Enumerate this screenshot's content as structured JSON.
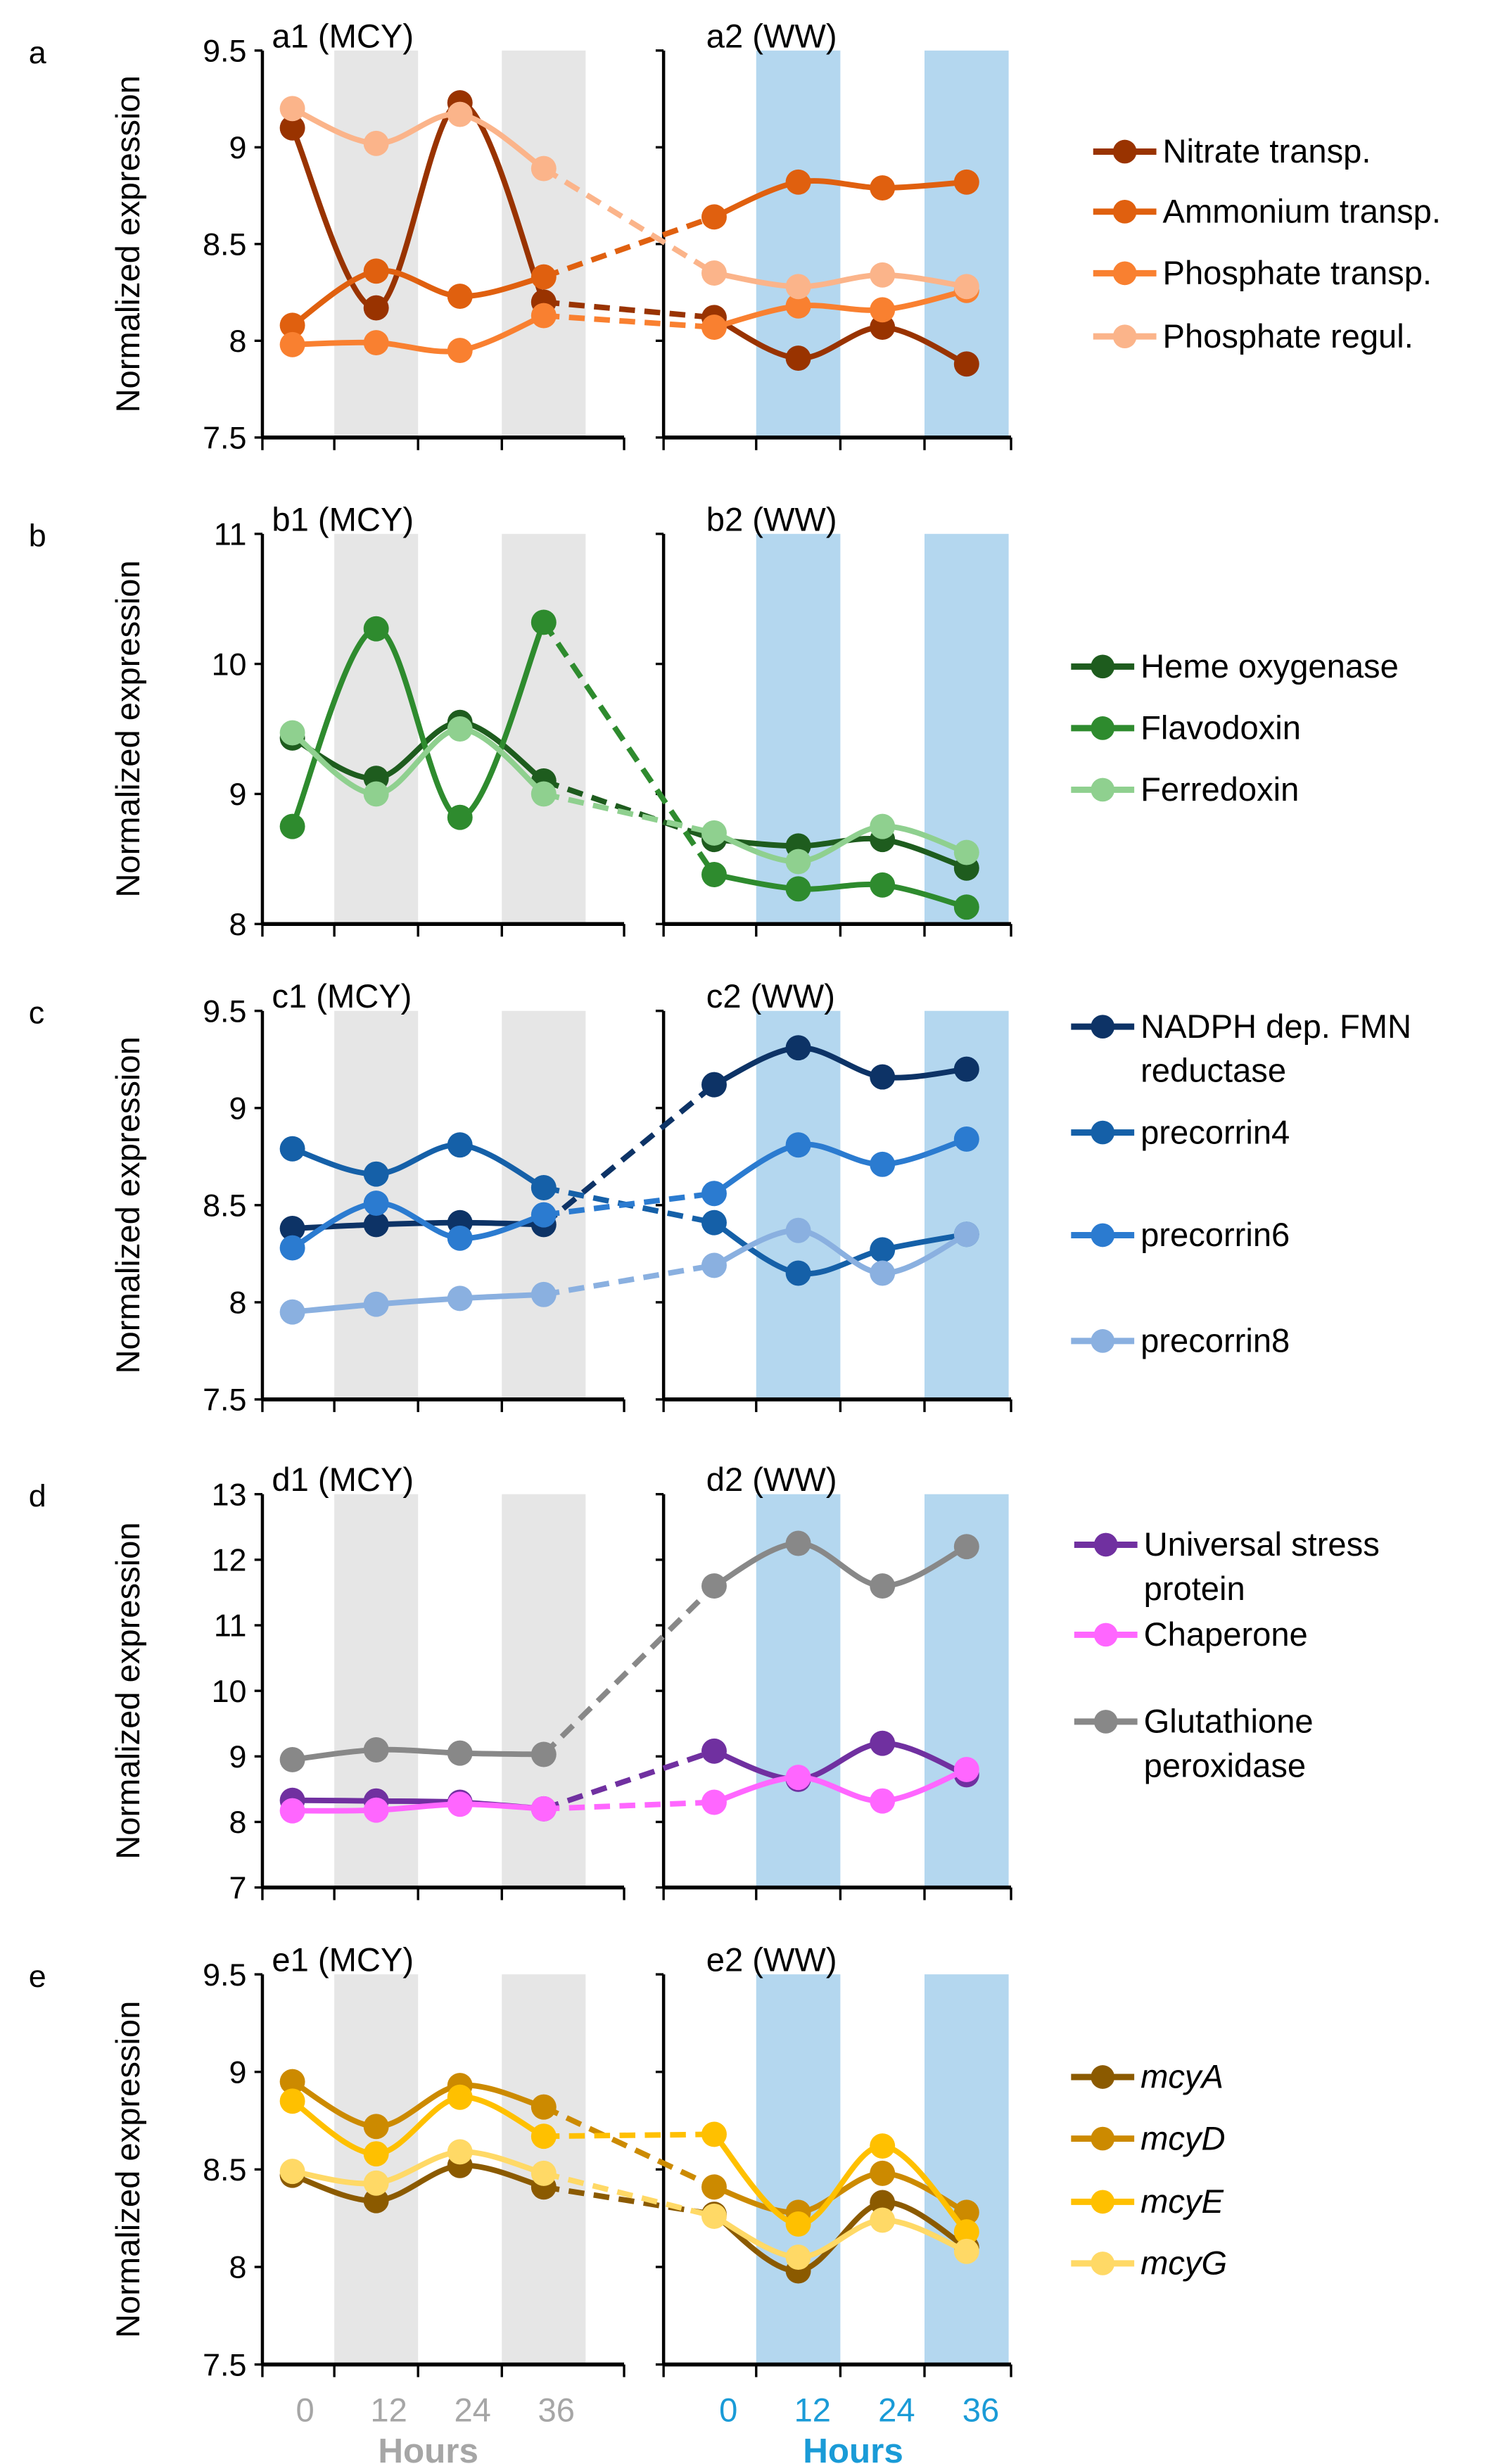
{
  "x_axis": {
    "ticks": [
      "0",
      "12",
      "24",
      "36"
    ],
    "left_label": "Hours",
    "right_label": "Hours",
    "left_color": "#A6A6A6",
    "right_color": "#1A9BD7"
  },
  "band_colors": {
    "MCY": "#E6E6E6",
    "WW": "#B4D7EF"
  },
  "chart_data": [
    {
      "type": "line",
      "panel": "a",
      "left_title": "a1 (MCY)",
      "right_title": "a2 (WW)",
      "ylabel": "Normalized expression",
      "ylim": [
        7.5,
        9.5
      ],
      "yticks": [
        "9.5",
        "9",
        "8.5",
        "8",
        "7.5"
      ],
      "x": [
        0,
        12,
        24,
        36
      ],
      "series": [
        {
          "name": [
            "Nitrate transp."
          ],
          "color": "#993300",
          "left": [
            9.1,
            8.17,
            9.23,
            8.2
          ],
          "right": [
            8.12,
            7.91,
            8.07,
            7.88
          ]
        },
        {
          "name": [
            "Ammonium transp."
          ],
          "color": "#E0600F",
          "left": [
            8.08,
            8.36,
            8.23,
            8.33
          ],
          "right": [
            8.64,
            8.82,
            8.79,
            8.82
          ]
        },
        {
          "name": [
            "Phosphate transp."
          ],
          "color": "#F98030",
          "left": [
            7.98,
            7.99,
            7.95,
            8.13
          ],
          "right": [
            8.07,
            8.18,
            8.16,
            8.26
          ]
        },
        {
          "name": [
            "Phosphate regul."
          ],
          "color": "#FBB48A",
          "left": [
            9.2,
            9.02,
            9.17,
            8.89
          ],
          "right": [
            8.35,
            8.28,
            8.34,
            8.28
          ]
        }
      ]
    },
    {
      "type": "line",
      "panel": "b",
      "left_title": "b1 (MCY)",
      "right_title": "b2 (WW)",
      "ylabel": "Normalized expression",
      "ylim": [
        8,
        11
      ],
      "yticks": [
        "11",
        "10",
        "9",
        "8"
      ],
      "x": [
        0,
        12,
        24,
        36
      ],
      "series": [
        {
          "name": [
            "Heme oxygenase"
          ],
          "color": "#1E5C1E",
          "left": [
            9.43,
            9.12,
            9.55,
            9.1
          ],
          "right": [
            8.65,
            8.6,
            8.65,
            8.43
          ]
        },
        {
          "name": [
            "Flavodoxin"
          ],
          "color": "#2E8B2E",
          "left": [
            8.75,
            10.27,
            8.82,
            10.32
          ],
          "right": [
            8.38,
            8.27,
            8.3,
            8.13
          ]
        },
        {
          "name": [
            "Ferredoxin"
          ],
          "color": "#8FD08F",
          "left": [
            9.47,
            9.0,
            9.5,
            9.0
          ],
          "right": [
            8.7,
            8.48,
            8.75,
            8.55
          ]
        }
      ]
    },
    {
      "type": "line",
      "panel": "c",
      "left_title": "c1 (MCY)",
      "right_title": "c2 (WW)",
      "ylabel": "Normalized expression",
      "ylim": [
        7.5,
        9.5
      ],
      "yticks": [
        "9.5",
        "9",
        "8.5",
        "8",
        "7.5"
      ],
      "x": [
        0,
        12,
        24,
        36
      ],
      "series": [
        {
          "name": [
            "NADPH dep. FMN",
            "reductase"
          ],
          "color": "#0D3366",
          "left": [
            8.38,
            8.4,
            8.41,
            8.4
          ],
          "right": [
            9.12,
            9.31,
            9.16,
            9.2
          ]
        },
        {
          "name": [
            "precorrin4"
          ],
          "color": "#1560A8",
          "left": [
            8.79,
            8.66,
            8.81,
            8.59
          ],
          "right": [
            8.41,
            8.15,
            8.27,
            8.35
          ]
        },
        {
          "name": [
            "precorrin6"
          ],
          "color": "#2B7BD0",
          "left": [
            8.28,
            8.51,
            8.33,
            8.45
          ],
          "right": [
            8.56,
            8.81,
            8.71,
            8.84
          ]
        },
        {
          "name": [
            "precorrin8"
          ],
          "color": "#8AB0E0",
          "left": [
            7.95,
            7.99,
            8.02,
            8.04
          ],
          "right": [
            8.19,
            8.37,
            8.15,
            8.35
          ]
        }
      ]
    },
    {
      "type": "line",
      "panel": "d",
      "left_title": "d1 (MCY)",
      "right_title": "d2 (WW)",
      "ylabel": "Normalized expression",
      "ylim": [
        7,
        13
      ],
      "yticks": [
        "13",
        "12",
        "11",
        "10",
        "9",
        "8",
        "7"
      ],
      "x": [
        0,
        12,
        24,
        36
      ],
      "series": [
        {
          "name": [
            "Universal stress",
            "protein"
          ],
          "color": "#7030A0",
          "left": [
            8.33,
            8.32,
            8.3,
            8.2
          ],
          "right": [
            9.08,
            8.65,
            9.2,
            8.72
          ]
        },
        {
          "name": [
            "Chaperone"
          ],
          "color": "#FF66FF",
          "left": [
            8.17,
            8.18,
            8.27,
            8.2
          ],
          "right": [
            8.3,
            8.68,
            8.32,
            8.8
          ]
        },
        {
          "name": [
            "Glutathione",
            "peroxidase"
          ],
          "color": "#888888",
          "left": [
            8.95,
            9.1,
            9.05,
            9.03
          ],
          "right": [
            11.6,
            12.25,
            11.6,
            12.2
          ]
        }
      ]
    },
    {
      "type": "line",
      "panel": "e",
      "left_title": "e1 (MCY)",
      "right_title": "e2 (WW)",
      "ylabel": "Normalized expression",
      "ylim": [
        7.5,
        9.5
      ],
      "yticks": [
        "9.5",
        "9",
        "8.5",
        "8",
        "7.5"
      ],
      "x": [
        0,
        12,
        24,
        36
      ],
      "italic_legend": true,
      "series": [
        {
          "name": [
            "mcyA"
          ],
          "color": "#8B5A00",
          "left": [
            8.47,
            8.34,
            8.52,
            8.41
          ],
          "right": [
            8.27,
            7.98,
            8.33,
            8.1
          ]
        },
        {
          "name": [
            "mcyD"
          ],
          "color": "#CC8A00",
          "left": [
            8.95,
            8.72,
            8.93,
            8.82
          ],
          "right": [
            8.41,
            8.28,
            8.48,
            8.28
          ]
        },
        {
          "name": [
            "mcyE"
          ],
          "color": "#FFC000",
          "left": [
            8.85,
            8.58,
            8.87,
            8.67
          ],
          "right": [
            8.68,
            8.22,
            8.62,
            8.18
          ]
        },
        {
          "name": [
            "mcyG"
          ],
          "color": "#FFD966",
          "left": [
            8.49,
            8.43,
            8.59,
            8.48
          ],
          "right": [
            8.26,
            8.05,
            8.24,
            8.08
          ]
        }
      ]
    }
  ]
}
